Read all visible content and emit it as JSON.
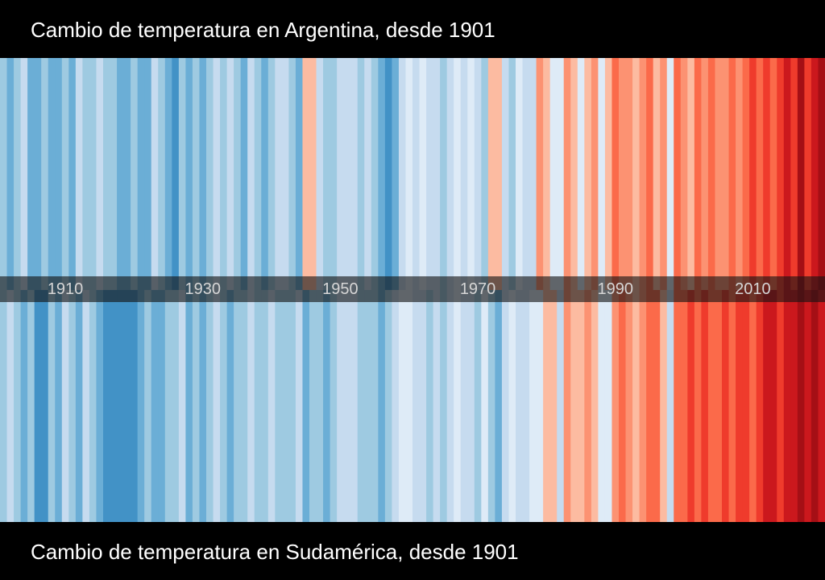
{
  "top_title": "Cambio de temperatura en Argentina, desde 1901",
  "bottom_title": "Cambio de temperatura en Sudamérica, desde 1901",
  "chart_data": [
    {
      "type": "heatmap",
      "title": "Cambio de temperatura en Argentina, desde 1901",
      "x_start": 1901,
      "x_end": 2020,
      "x_ticks": [
        1910,
        1930,
        1950,
        1970,
        1990,
        2010
      ],
      "anomaly_index": [
        -2,
        -3,
        -2,
        -1,
        -3,
        -3,
        -2,
        -3,
        -3,
        -2,
        -3,
        -1,
        -2,
        -2,
        -1,
        -2,
        -2,
        -3,
        -3,
        -2,
        -3,
        -3,
        -1,
        -2,
        -3,
        -4,
        -2,
        -3,
        -2,
        -3,
        -2,
        -1,
        -2,
        -1,
        -2,
        -3,
        -1,
        -2,
        -3,
        -2,
        -1,
        -1,
        -2,
        -3,
        1,
        1,
        -1,
        -2,
        -2,
        -1,
        -1,
        -1,
        -2,
        -1,
        -2,
        -3,
        -4,
        -3,
        -1,
        0,
        -1,
        0,
        -1,
        -1,
        -2,
        -1,
        0,
        -1,
        0,
        -1,
        -2,
        1,
        1,
        -1,
        -2,
        0,
        -1,
        -1,
        2,
        1,
        0,
        0,
        2,
        1,
        0,
        1,
        2,
        0,
        1,
        3,
        2,
        2,
        1,
        2,
        3,
        1,
        2,
        0,
        3,
        2,
        1,
        3,
        2,
        3,
        2,
        2,
        3,
        2,
        3,
        4,
        3,
        4,
        3,
        4,
        5,
        4,
        6,
        4,
        5,
        6
      ]
    },
    {
      "type": "heatmap",
      "title": "Cambio de temperatura en Sudamérica, desde 1901",
      "x_start": 1901,
      "x_end": 2020,
      "x_ticks": [
        1910,
        1930,
        1950,
        1970,
        1990,
        2010
      ],
      "anomaly_index": [
        -2,
        -1,
        -2,
        -3,
        -2,
        -4,
        -4,
        -2,
        -3,
        -1,
        -2,
        -3,
        -1,
        -2,
        -3,
        -4,
        -4,
        -4,
        -4,
        -4,
        -3,
        -2,
        -3,
        -3,
        -2,
        -2,
        -1,
        -3,
        -2,
        -3,
        -2,
        -1,
        -2,
        -3,
        -2,
        -2,
        -1,
        -2,
        -2,
        -1,
        -2,
        -2,
        -2,
        -1,
        -3,
        -2,
        -2,
        -3,
        -2,
        -1,
        -1,
        -1,
        -2,
        -2,
        -2,
        -3,
        -2,
        -1,
        0,
        0,
        -1,
        -1,
        -2,
        -1,
        -2,
        -1,
        0,
        -1,
        -1,
        -2,
        0,
        -2,
        -3,
        -1,
        0,
        -1,
        -1,
        0,
        0,
        1,
        1,
        -1,
        2,
        1,
        1,
        2,
        1,
        0,
        0,
        2,
        3,
        2,
        1,
        2,
        3,
        3,
        1,
        -1,
        3,
        3,
        4,
        3,
        4,
        3,
        3,
        4,
        3,
        4,
        4,
        3,
        4,
        5,
        5,
        4,
        5,
        5,
        6,
        5,
        6,
        5
      ]
    }
  ],
  "colors": {
    "scale": [
      "#08306b",
      "#08519c",
      "#2171b5",
      "#4292c6",
      "#6baed6",
      "#9ecae1",
      "#c6dbef",
      "#deebf7",
      "#fee0d2",
      "#fcbba1",
      "#fc9272",
      "#fb6a4a",
      "#ef3b2c",
      "#cb181d",
      "#a50f15",
      "#67000d"
    ],
    "background": "#000000",
    "title_text": "#ffffff"
  }
}
